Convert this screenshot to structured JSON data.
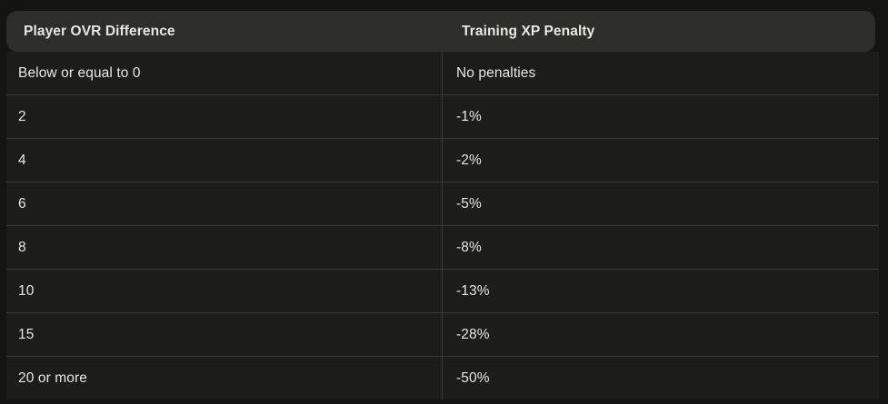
{
  "colors": {
    "page_background": "#141412",
    "header_background": "#2d2d2b",
    "body_background": "#1c1c1a",
    "divider": "#393937",
    "text": "#e9e7e0"
  },
  "table": {
    "columns": [
      {
        "label": "Player OVR Difference"
      },
      {
        "label": "Training XP Penalty"
      }
    ],
    "rows": [
      {
        "ovr": "Below or equal to 0",
        "penalty": "No penalties"
      },
      {
        "ovr": "2",
        "penalty": "-1%"
      },
      {
        "ovr": "4",
        "penalty": "-2%"
      },
      {
        "ovr": "6",
        "penalty": "-5%"
      },
      {
        "ovr": "8",
        "penalty": "-8%"
      },
      {
        "ovr": "10",
        "penalty": "-13%"
      },
      {
        "ovr": "15",
        "penalty": "-28%"
      },
      {
        "ovr": "20 or more",
        "penalty": "-50%"
      }
    ]
  },
  "chart_data": {
    "type": "table",
    "title": "",
    "columns": [
      "Player OVR Difference",
      "Training XP Penalty"
    ],
    "rows": [
      [
        "Below or equal to 0",
        "No penalties"
      ],
      [
        "2",
        "-1%"
      ],
      [
        "4",
        "-2%"
      ],
      [
        "6",
        "-5%"
      ],
      [
        "8",
        "-8%"
      ],
      [
        "10",
        "-13%"
      ],
      [
        "15",
        "-28%"
      ],
      [
        "20 or more",
        "-50%"
      ]
    ]
  }
}
